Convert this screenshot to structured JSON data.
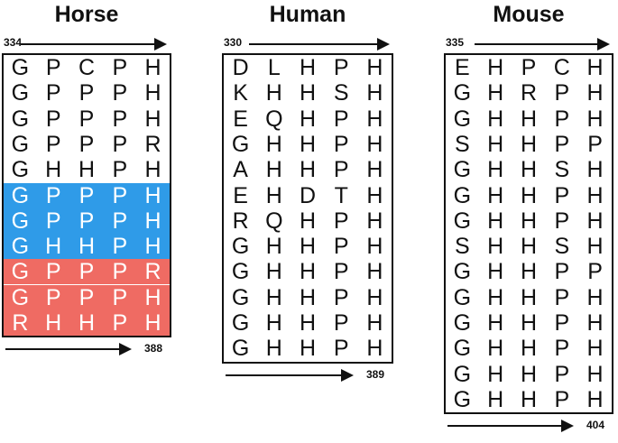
{
  "colors": {
    "blue": "#2f9be8",
    "red": "#ef6b63",
    "text": "#111111"
  },
  "panels": [
    {
      "name": "Horse",
      "start": "334",
      "end": "388",
      "rows": [
        {
          "letters": [
            "G",
            "P",
            "C",
            "P",
            "H"
          ],
          "highlight": "none"
        },
        {
          "letters": [
            "G",
            "P",
            "P",
            "P",
            "H"
          ],
          "highlight": "none"
        },
        {
          "letters": [
            "G",
            "P",
            "P",
            "P",
            "H"
          ],
          "highlight": "none"
        },
        {
          "letters": [
            "G",
            "P",
            "P",
            "P",
            "R"
          ],
          "highlight": "none"
        },
        {
          "letters": [
            "G",
            "H",
            "H",
            "P",
            "H"
          ],
          "highlight": "none"
        },
        {
          "letters": [
            "G",
            "P",
            "P",
            "P",
            "H"
          ],
          "highlight": "blue"
        },
        {
          "letters": [
            "G",
            "P",
            "P",
            "P",
            "H"
          ],
          "highlight": "blue"
        },
        {
          "letters": [
            "G",
            "H",
            "H",
            "P",
            "H"
          ],
          "highlight": "blue"
        },
        {
          "letters": [
            "G",
            "P",
            "P",
            "P",
            "R"
          ],
          "highlight": "red"
        },
        {
          "letters": [
            "G",
            "P",
            "P",
            "P",
            "H"
          ],
          "highlight": "red"
        },
        {
          "letters": [
            "R",
            "H",
            "H",
            "P",
            "H"
          ],
          "highlight": "red"
        }
      ]
    },
    {
      "name": "Human",
      "start": "330",
      "end": "389",
      "rows": [
        {
          "letters": [
            "D",
            "L",
            "H",
            "P",
            "H"
          ],
          "highlight": "none"
        },
        {
          "letters": [
            "K",
            "H",
            "H",
            "S",
            "H"
          ],
          "highlight": "none"
        },
        {
          "letters": [
            "E",
            "Q",
            "H",
            "P",
            "H"
          ],
          "highlight": "none"
        },
        {
          "letters": [
            "G",
            "H",
            "H",
            "P",
            "H"
          ],
          "highlight": "none"
        },
        {
          "letters": [
            "A",
            "H",
            "H",
            "P",
            "H"
          ],
          "highlight": "none"
        },
        {
          "letters": [
            "E",
            "H",
            "D",
            "T",
            "H"
          ],
          "highlight": "none"
        },
        {
          "letters": [
            "R",
            "Q",
            "H",
            "P",
            "H"
          ],
          "highlight": "none"
        },
        {
          "letters": [
            "G",
            "H",
            "H",
            "P",
            "H"
          ],
          "highlight": "none"
        },
        {
          "letters": [
            "G",
            "H",
            "H",
            "P",
            "H"
          ],
          "highlight": "none"
        },
        {
          "letters": [
            "G",
            "H",
            "H",
            "P",
            "H"
          ],
          "highlight": "none"
        },
        {
          "letters": [
            "G",
            "H",
            "H",
            "P",
            "H"
          ],
          "highlight": "none"
        },
        {
          "letters": [
            "G",
            "H",
            "H",
            "P",
            "H"
          ],
          "highlight": "none"
        }
      ]
    },
    {
      "name": "Mouse",
      "start": "335",
      "end": "404",
      "rows": [
        {
          "letters": [
            "E",
            "H",
            "P",
            "C",
            "H"
          ],
          "highlight": "none"
        },
        {
          "letters": [
            "G",
            "H",
            "R",
            "P",
            "H"
          ],
          "highlight": "none"
        },
        {
          "letters": [
            "G",
            "H",
            "H",
            "P",
            "H"
          ],
          "highlight": "none"
        },
        {
          "letters": [
            "S",
            "H",
            "H",
            "P",
            "P"
          ],
          "highlight": "none"
        },
        {
          "letters": [
            "G",
            "H",
            "H",
            "S",
            "H"
          ],
          "highlight": "none"
        },
        {
          "letters": [
            "G",
            "H",
            "H",
            "P",
            "H"
          ],
          "highlight": "none"
        },
        {
          "letters": [
            "G",
            "H",
            "H",
            "P",
            "H"
          ],
          "highlight": "none"
        },
        {
          "letters": [
            "S",
            "H",
            "H",
            "S",
            "H"
          ],
          "highlight": "none"
        },
        {
          "letters": [
            "G",
            "H",
            "H",
            "P",
            "P"
          ],
          "highlight": "none"
        },
        {
          "letters": [
            "G",
            "H",
            "H",
            "P",
            "H"
          ],
          "highlight": "none"
        },
        {
          "letters": [
            "G",
            "H",
            "H",
            "P",
            "H"
          ],
          "highlight": "none"
        },
        {
          "letters": [
            "G",
            "H",
            "H",
            "P",
            "H"
          ],
          "highlight": "none"
        },
        {
          "letters": [
            "G",
            "H",
            "H",
            "P",
            "H"
          ],
          "highlight": "none"
        },
        {
          "letters": [
            "G",
            "H",
            "H",
            "P",
            "H"
          ],
          "highlight": "none"
        }
      ]
    }
  ]
}
